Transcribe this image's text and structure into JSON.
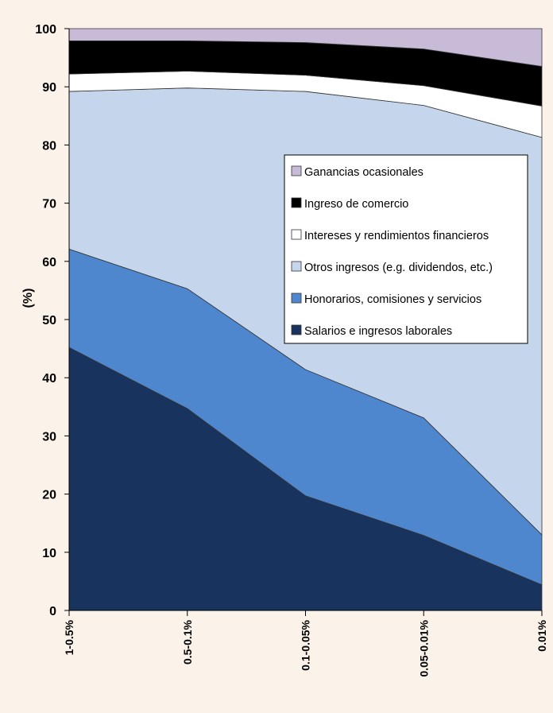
{
  "chart_data": {
    "type": "area",
    "stacked": true,
    "categories": [
      "1-0.5%",
      "0.5-0.1%",
      "0.1-0.05%",
      "0.05-0.01%",
      "0.01%"
    ],
    "series": [
      {
        "name": "Salarios e ingresos laborales",
        "color": "#17335e",
        "values": [
          45.2,
          34.7,
          19.7,
          12.9,
          4.4
        ]
      },
      {
        "name": "Honorarios, comisiones y servicios",
        "color": "#4f87cf",
        "values": [
          16.9,
          20.6,
          21.7,
          20.2,
          8.6
        ]
      },
      {
        "name": "Otros ingresos (e.g. dividendos, etc.)",
        "color": "#c5d6ec",
        "values": [
          27.1,
          34.5,
          47.8,
          53.7,
          68.3
        ]
      },
      {
        "name": "Intereses y rendimientos financieros",
        "color": "#ffffff",
        "values": [
          3.0,
          2.9,
          2.8,
          3.4,
          5.4
        ]
      },
      {
        "name": "Ingreso de comercio",
        "color": "#000000",
        "values": [
          5.7,
          5.2,
          5.6,
          6.3,
          6.8
        ]
      },
      {
        "name": "Ganancias ocasionales",
        "color": "#c8bbd8",
        "values": [
          2.1,
          2.1,
          2.4,
          3.5,
          6.5
        ]
      }
    ],
    "legend_order": [
      "Ganancias ocasionales",
      "Ingreso de comercio",
      "Intereses y rendimientos financieros",
      "Otros ingresos (e.g. dividendos, etc.)",
      "Honorarios, comisiones y servicios",
      "Salarios e ingresos laborales"
    ],
    "ylabel": "(%)",
    "xlabel": "",
    "title": "",
    "ylim": [
      0,
      100
    ],
    "yticks": [
      0,
      10,
      20,
      30,
      40,
      50,
      60,
      70,
      80,
      90,
      100
    ],
    "grid": false,
    "legend_position": "right-center"
  }
}
